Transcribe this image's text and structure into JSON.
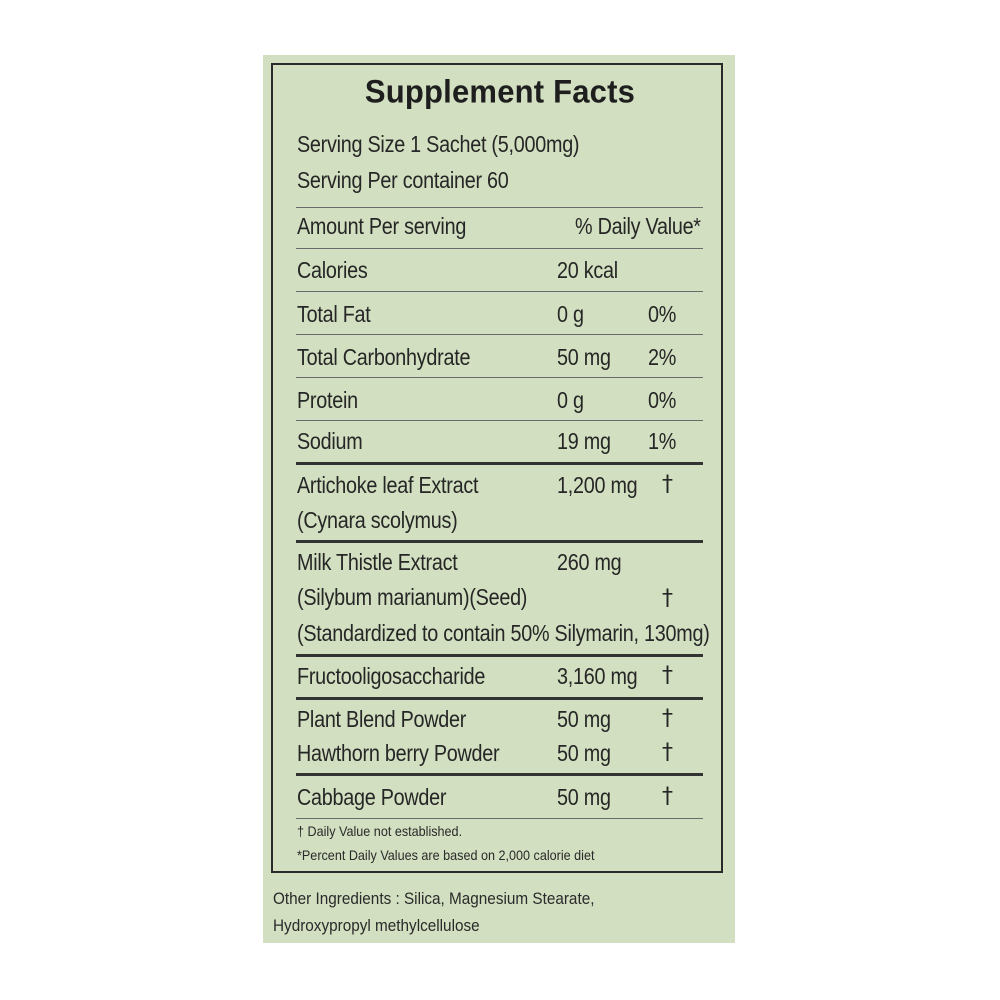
{
  "title": "Supplement Facts",
  "serving_size": "Serving Size 1 Sachet (5,000mg)",
  "servings_per_container": "Serving Per container 60",
  "header": {
    "amount": "Amount Per serving",
    "daily_value": "% Daily Value*"
  },
  "calories": {
    "label": "Calories",
    "amount": "20 kcal"
  },
  "nutrients": [
    {
      "label": "Total Fat",
      "amount": "0 g",
      "dv": "0%"
    },
    {
      "label": "Total Carbonhydrate",
      "amount": "50 mg",
      "dv": "2%"
    },
    {
      "label": "Protein",
      "amount": "0 g",
      "dv": "0%"
    },
    {
      "label": "Sodium",
      "amount": "19 mg",
      "dv": "1%"
    }
  ],
  "ingredients": {
    "artichoke": {
      "line1": "Artichoke leaf Extract",
      "line2": "(Cynara scolymus)",
      "amount": "1,200 mg",
      "dv": "†"
    },
    "milk_thistle": {
      "line1": "Milk Thistle Extract",
      "line2": "(Silybum marianum)(Seed)",
      "line3": "(Standardized to contain 50% Silymarin, 130mg)",
      "amount": "260 mg",
      "dv": "†"
    },
    "fos": {
      "label": "Fructooligosaccharide",
      "amount": "3,160 mg",
      "dv": "†"
    },
    "plant_blend": {
      "label": "Plant Blend Powder",
      "amount": "50 mg",
      "dv": "†"
    },
    "hawthorn": {
      "label": "Hawthorn berry Powder",
      "amount": "50 mg",
      "dv": "†"
    },
    "cabbage": {
      "label": "Cabbage Powder",
      "amount": "50 mg",
      "dv": "†"
    }
  },
  "footnotes": {
    "dagger_note": "† Daily Value not established.",
    "percent_note": "*Percent Daily Values are based on 2,000 calorie diet"
  },
  "other_ingredients": {
    "line1": "Other Ingredients : Silica, Magnesium Stearate,",
    "line2": "Hydroxypropyl methylcellulose"
  },
  "colors": {
    "panel_background": "#d2dfc0",
    "text": "#262626",
    "border": "#2a2a2a"
  }
}
